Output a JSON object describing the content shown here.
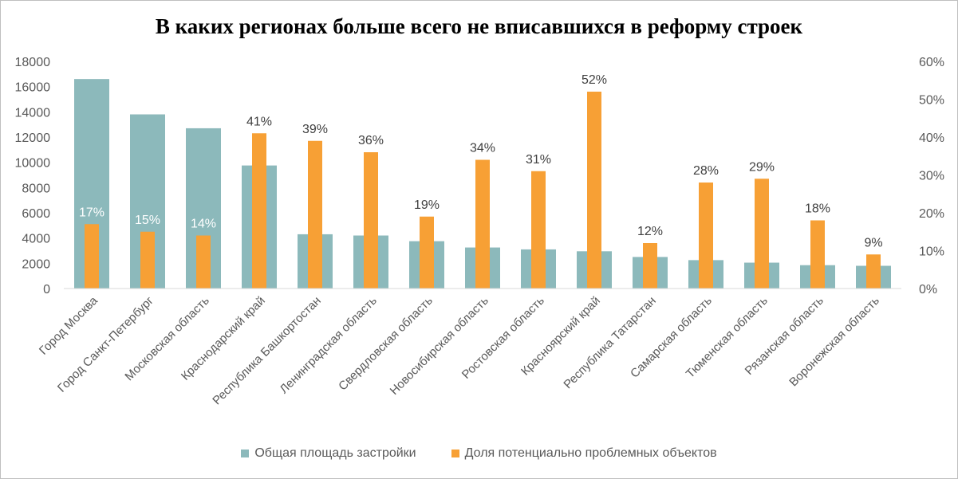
{
  "chart_data": {
    "type": "bar",
    "title": "В каких регионах больше всего не вписавшихся в реформу строек",
    "categories": [
      "Город Москва",
      "Город Санкт-Петербург",
      "Московская область",
      "Краснодарский край",
      "Республика Башкортостан",
      "Ленинградская область",
      "Свердловская область",
      "Новосибирская область",
      "Ростовская область",
      "Красноярский край",
      "Республика Татарстан",
      "Самарская область",
      "Тюменская область",
      "Рязанская область",
      "Воронежская область"
    ],
    "series": [
      {
        "name": "Общая площадь застройки",
        "axis": "left",
        "color": "#8cb9bb",
        "values": [
          16600,
          13800,
          12700,
          9750,
          4300,
          4200,
          3750,
          3250,
          3100,
          2950,
          2500,
          2250,
          2050,
          1850,
          1800
        ]
      },
      {
        "name": "Доля потенциально проблемных объектов",
        "axis": "right",
        "color": "#f7a035",
        "values": [
          0.17,
          0.15,
          0.14,
          0.41,
          0.39,
          0.36,
          0.19,
          0.34,
          0.31,
          0.52,
          0.12,
          0.28,
          0.29,
          0.18,
          0.09
        ],
        "labels": [
          "17%",
          "15%",
          "14%",
          "41%",
          "39%",
          "36%",
          "19%",
          "34%",
          "31%",
          "52%",
          "12%",
          "28%",
          "29%",
          "18%",
          "9%"
        ]
      }
    ],
    "ylim_left": [
      0,
      18000
    ],
    "yticks_left": [
      "0",
      "2000",
      "4000",
      "6000",
      "8000",
      "10000",
      "12000",
      "14000",
      "16000",
      "18000"
    ],
    "ylim_right": [
      0,
      0.6
    ],
    "yticks_right": [
      "0%",
      "10%",
      "20%",
      "30%",
      "40%",
      "50%",
      "60%"
    ],
    "grid": false,
    "legend_position": "bottom"
  }
}
